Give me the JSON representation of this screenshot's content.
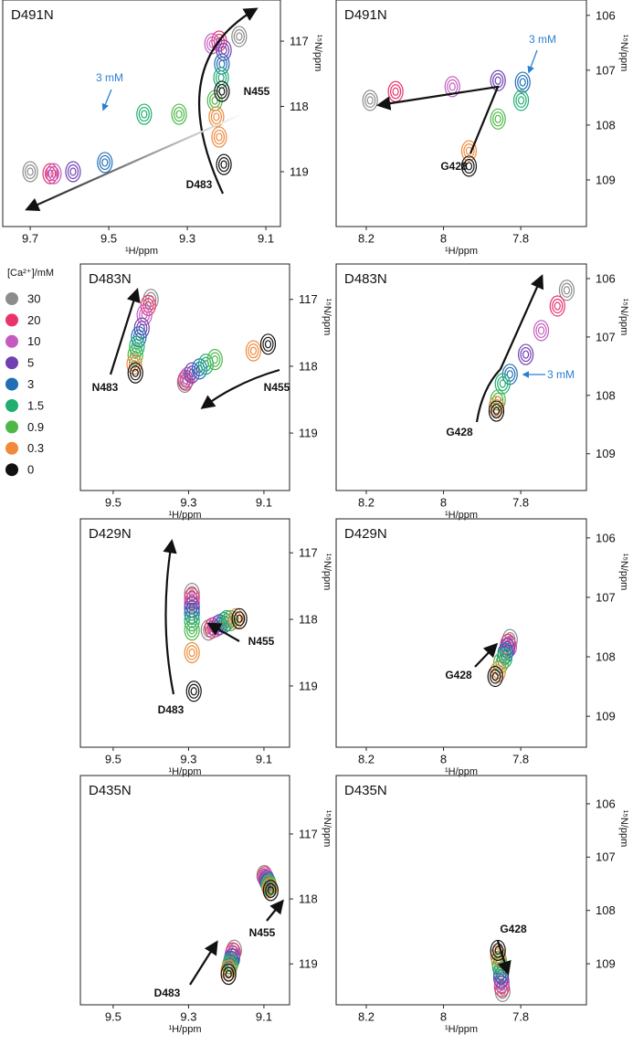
{
  "legend": {
    "title": "[Ca²⁺]/mM",
    "levels": [
      {
        "name": "30",
        "color": "#8c8c8c"
      },
      {
        "name": "20",
        "color": "#e8336b"
      },
      {
        "name": "10",
        "color": "#c45cc0"
      },
      {
        "name": "5",
        "color": "#7040b0"
      },
      {
        "name": "3",
        "color": "#1f6fb5"
      },
      {
        "name": "1.5",
        "color": "#1fae6f"
      },
      {
        "name": "0.9",
        "color": "#4cb848"
      },
      {
        "name": "0.3",
        "color": "#f08a3c"
      },
      {
        "name": "0",
        "color": "#111111"
      }
    ]
  },
  "chart_data": [
    {
      "type": "scatter",
      "title": "D491N",
      "xlabel": "¹H/ppm",
      "ylabel": "¹⁵N/ppm",
      "xlim": [
        9.77,
        9.063
      ],
      "ylim": [
        116.37,
        119.84
      ],
      "xticks": [
        9.7,
        9.5,
        9.3,
        9.1
      ],
      "yticks": [
        117,
        118,
        119
      ],
      "series": [
        {
          "name": "D483",
          "x": [
            9.168,
            9.219,
            9.237,
            9.207,
            9.212,
            9.214,
            9.23,
            9.219,
            9.207
          ],
          "values": [
            116.93,
            117.0,
            117.04,
            117.14,
            117.35,
            117.56,
            117.91,
            118.47,
            118.89
          ]
        },
        {
          "name": "N455",
          "x": [
            9.7,
            9.649,
            9.64,
            9.591,
            9.51,
            9.41,
            9.321,
            9.226,
            9.212
          ],
          "values": [
            119.0,
            119.03,
            119.03,
            119.0,
            118.86,
            118.12,
            118.12,
            118.16,
            117.77
          ]
        }
      ],
      "annotations": [
        "3 mM"
      ]
    },
    {
      "type": "scatter",
      "title": "D491N",
      "xlabel": "¹H/ppm",
      "ylabel": "¹⁵N/ppm",
      "xlim": [
        8.278,
        7.63
      ],
      "ylim": [
        105.72,
        109.85
      ],
      "xticks": [
        8.2,
        8.0,
        7.8
      ],
      "yticks": [
        106,
        107,
        108,
        109
      ],
      "series": [
        {
          "name": "G428",
          "x": [
            8.19,
            8.124,
            7.977,
            7.859,
            7.795,
            7.799,
            7.859,
            7.934,
            7.934
          ],
          "values": [
            107.55,
            107.39,
            107.3,
            107.19,
            107.22,
            107.55,
            107.89,
            108.47,
            108.75
          ]
        }
      ],
      "annotations": [
        "3 mM"
      ]
    },
    {
      "type": "scatter",
      "title": "D483N",
      "xlabel": "¹H/ppm",
      "ylabel": "¹⁵N/ppm",
      "xlim": [
        9.587,
        9.032
      ],
      "ylim": [
        116.47,
        119.86
      ],
      "xticks": [
        9.5,
        9.3,
        9.1
      ],
      "yticks": [
        117,
        118,
        119
      ],
      "series": [
        {
          "name": "N483",
          "x": [
            9.4,
            9.407,
            9.417,
            9.424,
            9.432,
            9.437,
            9.441,
            9.444,
            9.441
          ],
          "values": [
            117.0,
            117.09,
            117.23,
            117.43,
            117.56,
            117.7,
            117.83,
            117.97,
            118.1
          ]
        },
        {
          "name": "N455",
          "x": [
            9.31,
            9.308,
            9.303,
            9.291,
            9.271,
            9.254,
            9.23,
            9.128,
            9.089
          ],
          "values": [
            118.24,
            118.21,
            118.17,
            118.1,
            118.04,
            117.97,
            117.9,
            117.77,
            117.67
          ]
        }
      ],
      "annotations": []
    },
    {
      "type": "scatter",
      "title": "D483N",
      "xlabel": "¹H/ppm",
      "ylabel": "¹⁵N/ppm",
      "xlim": [
        8.278,
        7.63
      ],
      "ylim": [
        105.75,
        109.63
      ],
      "xticks": [
        8.2,
        8.0,
        7.8
      ],
      "yticks": [
        106,
        107,
        108,
        109
      ],
      "series": [
        {
          "name": "G428",
          "x": [
            7.681,
            7.705,
            7.747,
            7.787,
            7.828,
            7.847,
            7.859,
            7.863,
            7.863
          ],
          "values": [
            106.2,
            106.47,
            106.89,
            107.3,
            107.64,
            107.8,
            108.08,
            108.19,
            108.27
          ]
        }
      ],
      "annotations": [
        "3 mM"
      ]
    },
    {
      "type": "scatter",
      "title": "D429N",
      "xlabel": "¹H/ppm",
      "ylabel": "¹⁵N/ppm",
      "xlim": [
        9.587,
        9.032
      ],
      "ylim": [
        116.49,
        119.92
      ],
      "xticks": [
        9.5,
        9.3,
        9.1
      ],
      "yticks": [
        117,
        118,
        119
      ],
      "series": [
        {
          "name": "D483",
          "x": [
            9.291,
            9.291,
            9.291,
            9.291,
            9.291,
            9.291,
            9.291,
            9.291,
            9.286
          ],
          "values": [
            117.61,
            117.68,
            117.75,
            117.82,
            117.91,
            118.02,
            118.16,
            118.5,
            119.08
          ]
        },
        {
          "name": "N455",
          "x": [
            9.247,
            9.237,
            9.228,
            9.218,
            9.206,
            9.199,
            9.189,
            9.174,
            9.165
          ],
          "values": [
            118.16,
            118.13,
            118.11,
            118.08,
            118.05,
            118.02,
            118.02,
            117.99,
            117.99
          ]
        }
      ],
      "annotations": []
    },
    {
      "type": "scatter",
      "title": "D429N",
      "xlabel": "¹H/ppm",
      "ylabel": "¹⁵N/ppm",
      "xlim": [
        8.278,
        7.63
      ],
      "ylim": [
        105.68,
        109.52
      ],
      "xticks": [
        8.2,
        8.0,
        7.8
      ],
      "yticks": [
        106,
        107,
        108,
        109
      ],
      "series": [
        {
          "name": "G428",
          "x": [
            7.828,
            7.833,
            7.83,
            7.835,
            7.84,
            7.842,
            7.851,
            7.859,
            7.866
          ],
          "values": [
            107.71,
            107.79,
            107.83,
            107.86,
            107.94,
            108.02,
            108.1,
            108.25,
            108.33
          ]
        }
      ],
      "annotations": []
    },
    {
      "type": "scatter",
      "title": "D435N",
      "xlabel": "¹H/ppm",
      "ylabel": "¹⁵N/ppm",
      "xlim": [
        9.587,
        9.032
      ],
      "ylim": [
        116.1,
        119.63
      ],
      "xticks": [
        9.5,
        9.3,
        9.1
      ],
      "yticks": [
        117,
        118,
        119
      ],
      "series": [
        {
          "name": "D483",
          "x": [
            9.179,
            9.182,
            9.184,
            9.184,
            9.187,
            9.189,
            9.191,
            9.194,
            9.194
          ],
          "values": [
            118.79,
            118.83,
            118.87,
            118.92,
            118.96,
            119.0,
            119.04,
            119.1,
            119.16
          ]
        },
        {
          "name": "N455",
          "x": [
            9.099,
            9.097,
            9.094,
            9.092,
            9.089,
            9.087,
            9.087,
            9.085,
            9.082
          ],
          "values": [
            117.64,
            117.66,
            117.69,
            117.72,
            117.75,
            117.78,
            117.8,
            117.83,
            117.87
          ]
        }
      ],
      "annotations": []
    },
    {
      "type": "scatter",
      "title": "D435N",
      "xlabel": "¹H/ppm",
      "ylabel": "¹⁵N/ppm",
      "xlim": [
        8.278,
        7.63
      ],
      "ylim": [
        105.47,
        109.77
      ],
      "xticks": [
        8.2,
        8.0,
        7.8
      ],
      "yticks": [
        106,
        107,
        108,
        109
      ],
      "series": [
        {
          "name": "G428",
          "x": [
            7.847,
            7.849,
            7.849,
            7.851,
            7.851,
            7.854,
            7.856,
            7.859,
            7.859
          ],
          "values": [
            109.52,
            109.43,
            109.35,
            109.26,
            109.17,
            109.05,
            108.95,
            108.85,
            108.75
          ]
        }
      ],
      "annotations": []
    }
  ]
}
